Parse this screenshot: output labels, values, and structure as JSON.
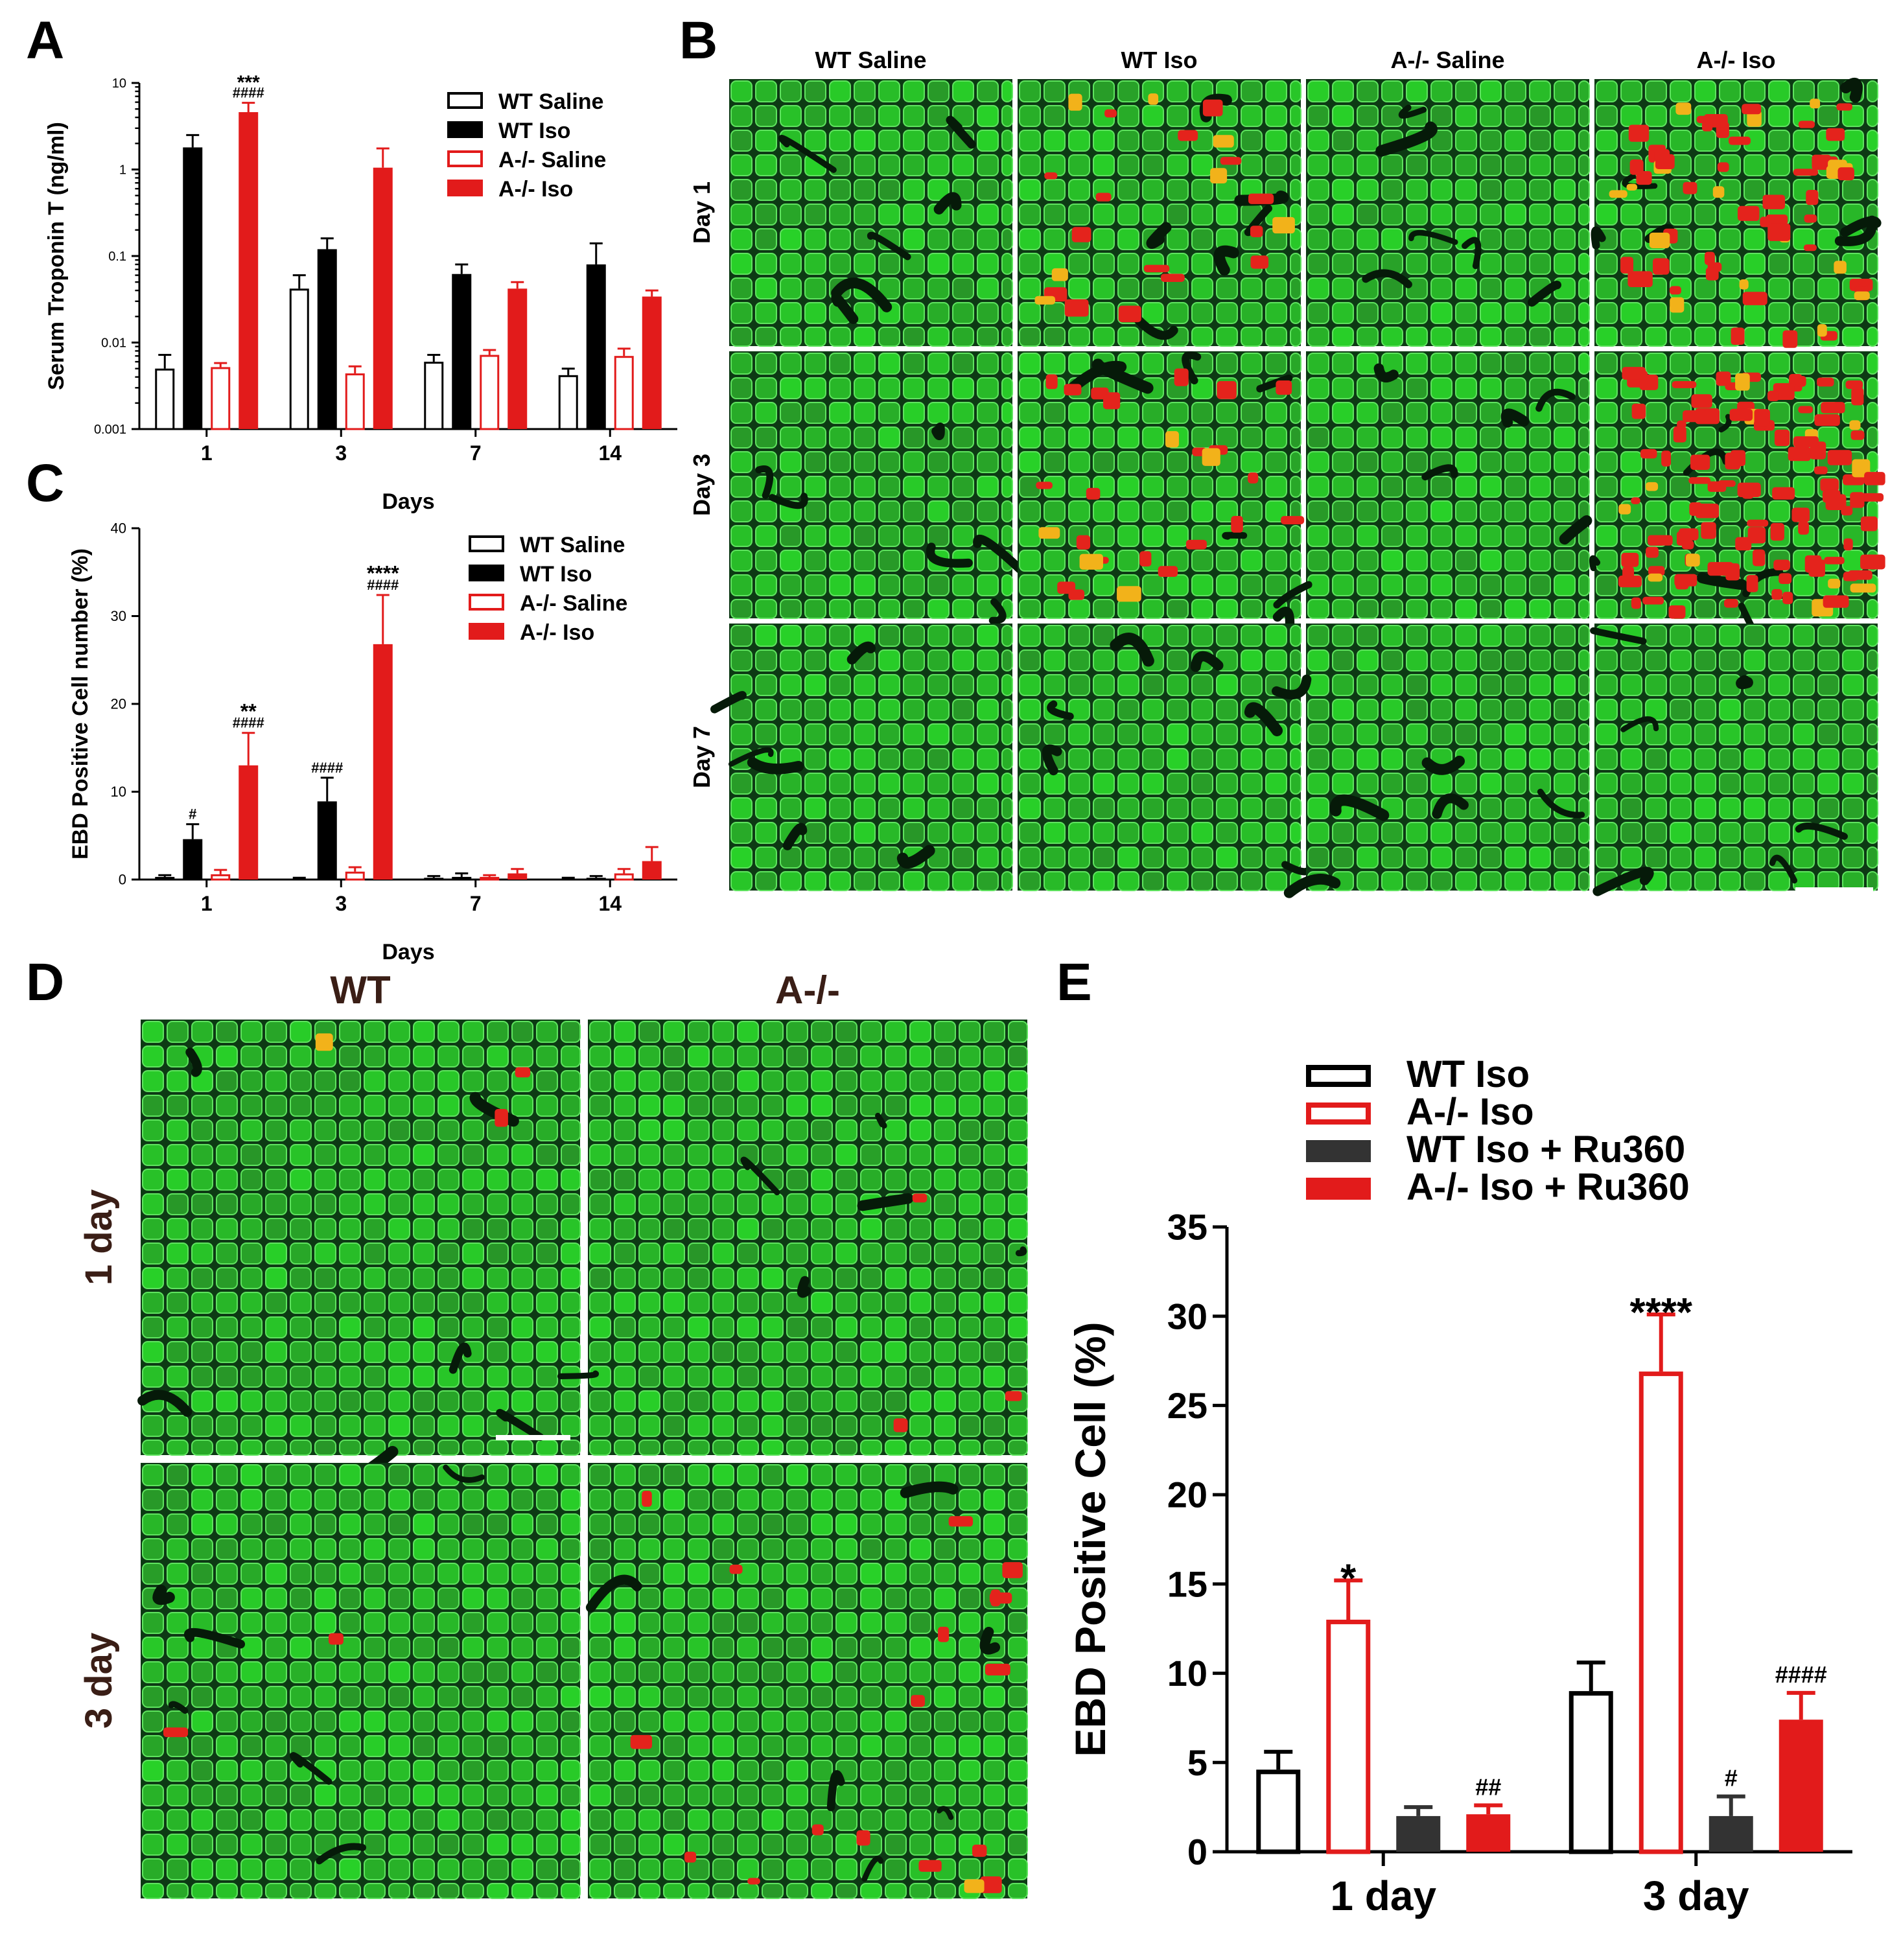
{
  "panels": {
    "A": {
      "label": "A",
      "chart_data": {
        "type": "bar",
        "yscale": "log",
        "ylim": [
          0.001,
          10
        ],
        "yticks": [
          "10",
          "1",
          "0.1",
          "0.01",
          "0.001"
        ],
        "categories": [
          "1",
          "3",
          "7",
          "14"
        ],
        "xlabel": "Days",
        "ylabel": "Serum Troponin T (ng/ml)",
        "legend": [
          "WT Saline",
          "WT Iso",
          "A-/- Saline",
          "A-/- Iso"
        ],
        "legend_position": "top-right",
        "series": [
          {
            "name": "WT Saline",
            "style": "hollow",
            "color": "#000000",
            "values": [
              0.005,
              0.042,
              0.006,
              0.0042
            ],
            "errors_upper": [
              0.0072,
              0.06,
              0.0072,
              0.005
            ]
          },
          {
            "name": "WT Iso",
            "style": "filled",
            "color": "#000000",
            "values": [
              1.8,
              0.12,
              0.062,
              0.08
            ],
            "errors_upper": [
              2.5,
              0.16,
              0.08,
              0.14
            ]
          },
          {
            "name": "A-/- Saline",
            "style": "hollow",
            "color": "#e21b1b",
            "values": [
              0.0052,
              0.0044,
              0.0072,
              0.007
            ],
            "errors_upper": [
              0.0058,
              0.0053,
              0.0082,
              0.0085
            ]
          },
          {
            "name": "A-/- Iso",
            "style": "filled",
            "color": "#e21b1b",
            "values": [
              4.6,
              1.05,
              0.042,
              0.034
            ],
            "errors_upper": [
              5.9,
              1.75,
              0.05,
              0.04
            ]
          }
        ],
        "annotations": [
          {
            "category": "1",
            "series": "A-/- Iso",
            "text": "***"
          },
          {
            "category": "1",
            "series": "A-/- Iso",
            "text": "####"
          }
        ]
      }
    },
    "B": {
      "label": "B",
      "columns": [
        "WT Saline",
        "WT Iso",
        "A-/- Saline",
        "A-/- Iso"
      ],
      "rows": [
        "Day 1",
        "Day 3",
        "Day 7"
      ]
    },
    "C": {
      "label": "C",
      "chart_data": {
        "type": "bar",
        "ylim": [
          0,
          40
        ],
        "yticks": [
          "0",
          "10",
          "20",
          "30",
          "40"
        ],
        "categories": [
          "1",
          "3",
          "7",
          "14"
        ],
        "xlabel": "Days",
        "ylabel": "EBD Positive Cell number (%)",
        "legend": [
          "WT Saline",
          "WT Iso",
          "A-/- Saline",
          "A-/- Iso"
        ],
        "legend_position": "top-right",
        "series": [
          {
            "name": "WT Saline",
            "style": "hollow",
            "color": "#000000",
            "values": [
              0.3,
              0.1,
              0.2,
              0.1
            ],
            "errors_upper": [
              0.5,
              0.2,
              0.4,
              0.2
            ]
          },
          {
            "name": "WT Iso",
            "style": "filled",
            "color": "#000000",
            "values": [
              4.6,
              8.9,
              0.3,
              0.2
            ],
            "errors_upper": [
              6.3,
              11.6,
              0.7,
              0.4
            ]
          },
          {
            "name": "A-/- Saline",
            "style": "hollow",
            "color": "#e21b1b",
            "values": [
              0.6,
              0.9,
              0.3,
              0.7
            ],
            "errors_upper": [
              1.1,
              1.4,
              0.5,
              1.2
            ]
          },
          {
            "name": "A-/- Iso",
            "style": "filled",
            "color": "#e21b1b",
            "values": [
              13.0,
              26.8,
              0.7,
              2.1
            ],
            "errors_upper": [
              16.7,
              32.4,
              1.2,
              3.7
            ]
          }
        ],
        "annotations": [
          {
            "category": "1",
            "series": "WT Iso",
            "text": "#"
          },
          {
            "category": "1",
            "series": "A-/- Iso",
            "text": "**"
          },
          {
            "category": "1",
            "series": "A-/- Iso",
            "text": "####"
          },
          {
            "category": "3",
            "series": "WT Iso",
            "text": "####"
          },
          {
            "category": "3",
            "series": "A-/- Iso",
            "text": "****"
          },
          {
            "category": "3",
            "series": "A-/- Iso",
            "text": "####"
          }
        ]
      }
    },
    "D": {
      "label": "D",
      "columns": [
        "WT",
        "A-/-"
      ],
      "rows": [
        "1 day",
        "3 day"
      ]
    },
    "E": {
      "label": "E",
      "chart_data": {
        "type": "bar",
        "ylim": [
          0,
          35
        ],
        "yticks": [
          "0",
          "5",
          "10",
          "15",
          "20",
          "25",
          "30",
          "35"
        ],
        "categories": [
          "1 day",
          "3 day"
        ],
        "ylabel": "EBD Positive Cell (%)",
        "legend": [
          "WT Iso",
          "A-/- Iso",
          "WT Iso + Ru360",
          "A-/- Iso + Ru360"
        ],
        "legend_position": "top",
        "series": [
          {
            "name": "WT Iso",
            "style": "hollow",
            "color": "#000000",
            "values": [
              4.6,
              9.0
            ],
            "errors_upper": [
              5.6,
              10.6
            ]
          },
          {
            "name": "A-/- Iso",
            "style": "hollow",
            "color": "#e21b1b",
            "values": [
              13.0,
              26.9
            ],
            "errors_upper": [
              15.2,
              30.1
            ]
          },
          {
            "name": "WT Iso + Ru360",
            "style": "filled",
            "color": "#333333",
            "values": [
              2.0,
              2.0
            ],
            "errors_upper": [
              2.5,
              3.1
            ]
          },
          {
            "name": "A-/- Iso + Ru360",
            "style": "filled",
            "color": "#e21b1b",
            "values": [
              2.1,
              7.4
            ],
            "errors_upper": [
              2.6,
              8.9
            ]
          }
        ],
        "annotations": [
          {
            "category": "1 day",
            "series": "A-/- Iso",
            "text": "*"
          },
          {
            "category": "1 day",
            "series": "A-/- Iso + Ru360",
            "text": "##"
          },
          {
            "category": "3 day",
            "series": "A-/- Iso",
            "text": "****"
          },
          {
            "category": "3 day",
            "series": "WT Iso + Ru360",
            "text": "#"
          },
          {
            "category": "3 day",
            "series": "A-/- Iso + Ru360",
            "text": "####"
          }
        ]
      }
    }
  },
  "colors": {
    "red": "#e21b1b",
    "black": "#000000",
    "tissue_green": "#2fb72f",
    "tissue_dark": "#0b2a10"
  }
}
